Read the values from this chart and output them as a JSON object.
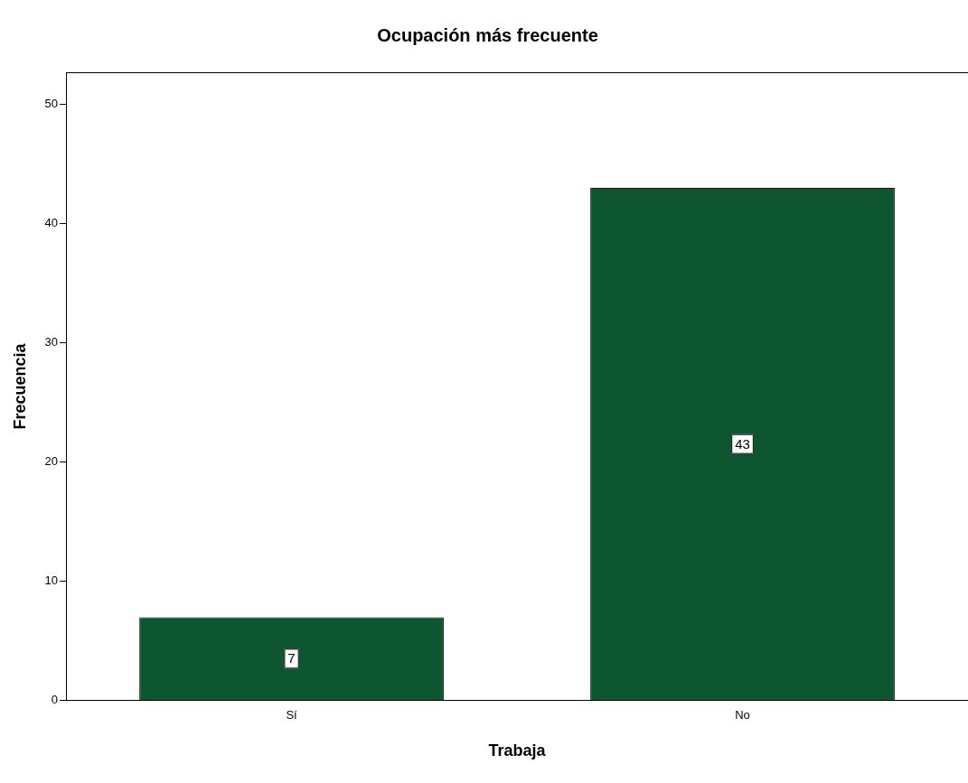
{
  "chart_data": {
    "type": "bar",
    "title": "Ocupación más frecuente",
    "xlabel": "Trabaja",
    "ylabel": "Frecuencia",
    "categories": [
      "Sí",
      "No"
    ],
    "values": [
      7,
      43
    ],
    "color": "#0d5630",
    "ylim": [
      0,
      52.7
    ],
    "yticks": [
      0,
      10,
      20,
      30,
      40,
      50
    ],
    "grid": false,
    "legend": false,
    "data_labels": true
  }
}
